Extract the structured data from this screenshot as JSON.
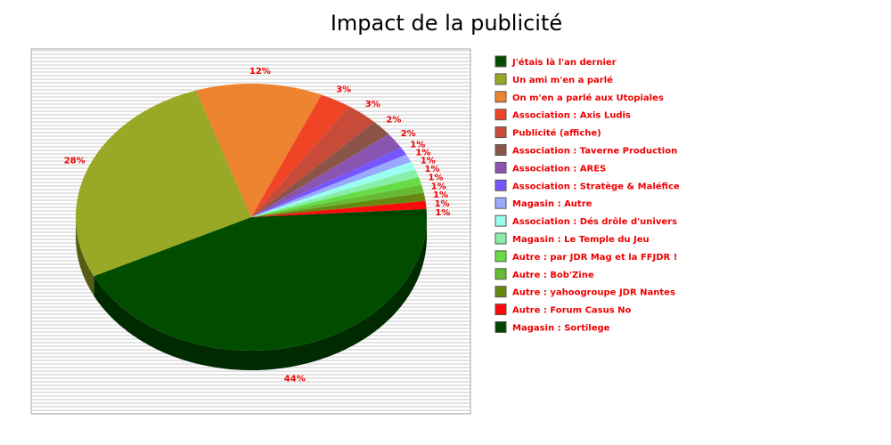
{
  "chart_data": {
    "type": "pie",
    "title": "Impact de la publicité",
    "categories": [
      "J'étais là l'an dernier",
      "Un ami m'en a parlé",
      "On m'en a parlé aux Utopiales",
      "Association : Axis Ludis",
      "Publicité (affiche)",
      "Association : Taverne Production",
      "Association : ARES",
      "Association : Stratège & Maléfice",
      "Magasin : Autre",
      "Association : Dés drôle d'univers",
      "Magasin : Le Temple du Jeu",
      "Autre : par JDR Mag et la FFJDR !",
      "Autre : Bob'Zine",
      "Autre : yahoogroupe JDR Nantes",
      "Autre : Forum Casus No",
      "Magasin : Sortilege"
    ],
    "values": [
      44,
      28,
      12,
      3,
      3,
      2,
      2,
      1,
      1,
      1,
      1,
      1,
      1,
      1,
      1,
      1
    ],
    "value_labels": [
      "44%",
      "28%",
      "12%",
      "3%",
      "3%",
      "2%",
      "2%",
      "1%",
      "1%",
      "1%",
      "1%",
      "1%",
      "1%",
      "1%",
      "1%",
      "1%"
    ],
    "colors": [
      "#004d00",
      "#99a825",
      "#ee8330",
      "#f04426",
      "#c84a38",
      "#8a5548",
      "#8a55b0",
      "#7755ff",
      "#99aaff",
      "#99ffee",
      "#88eeaa",
      "#66dd44",
      "#66bb33",
      "#668811",
      "#ff0a0a",
      "#004400"
    ]
  }
}
